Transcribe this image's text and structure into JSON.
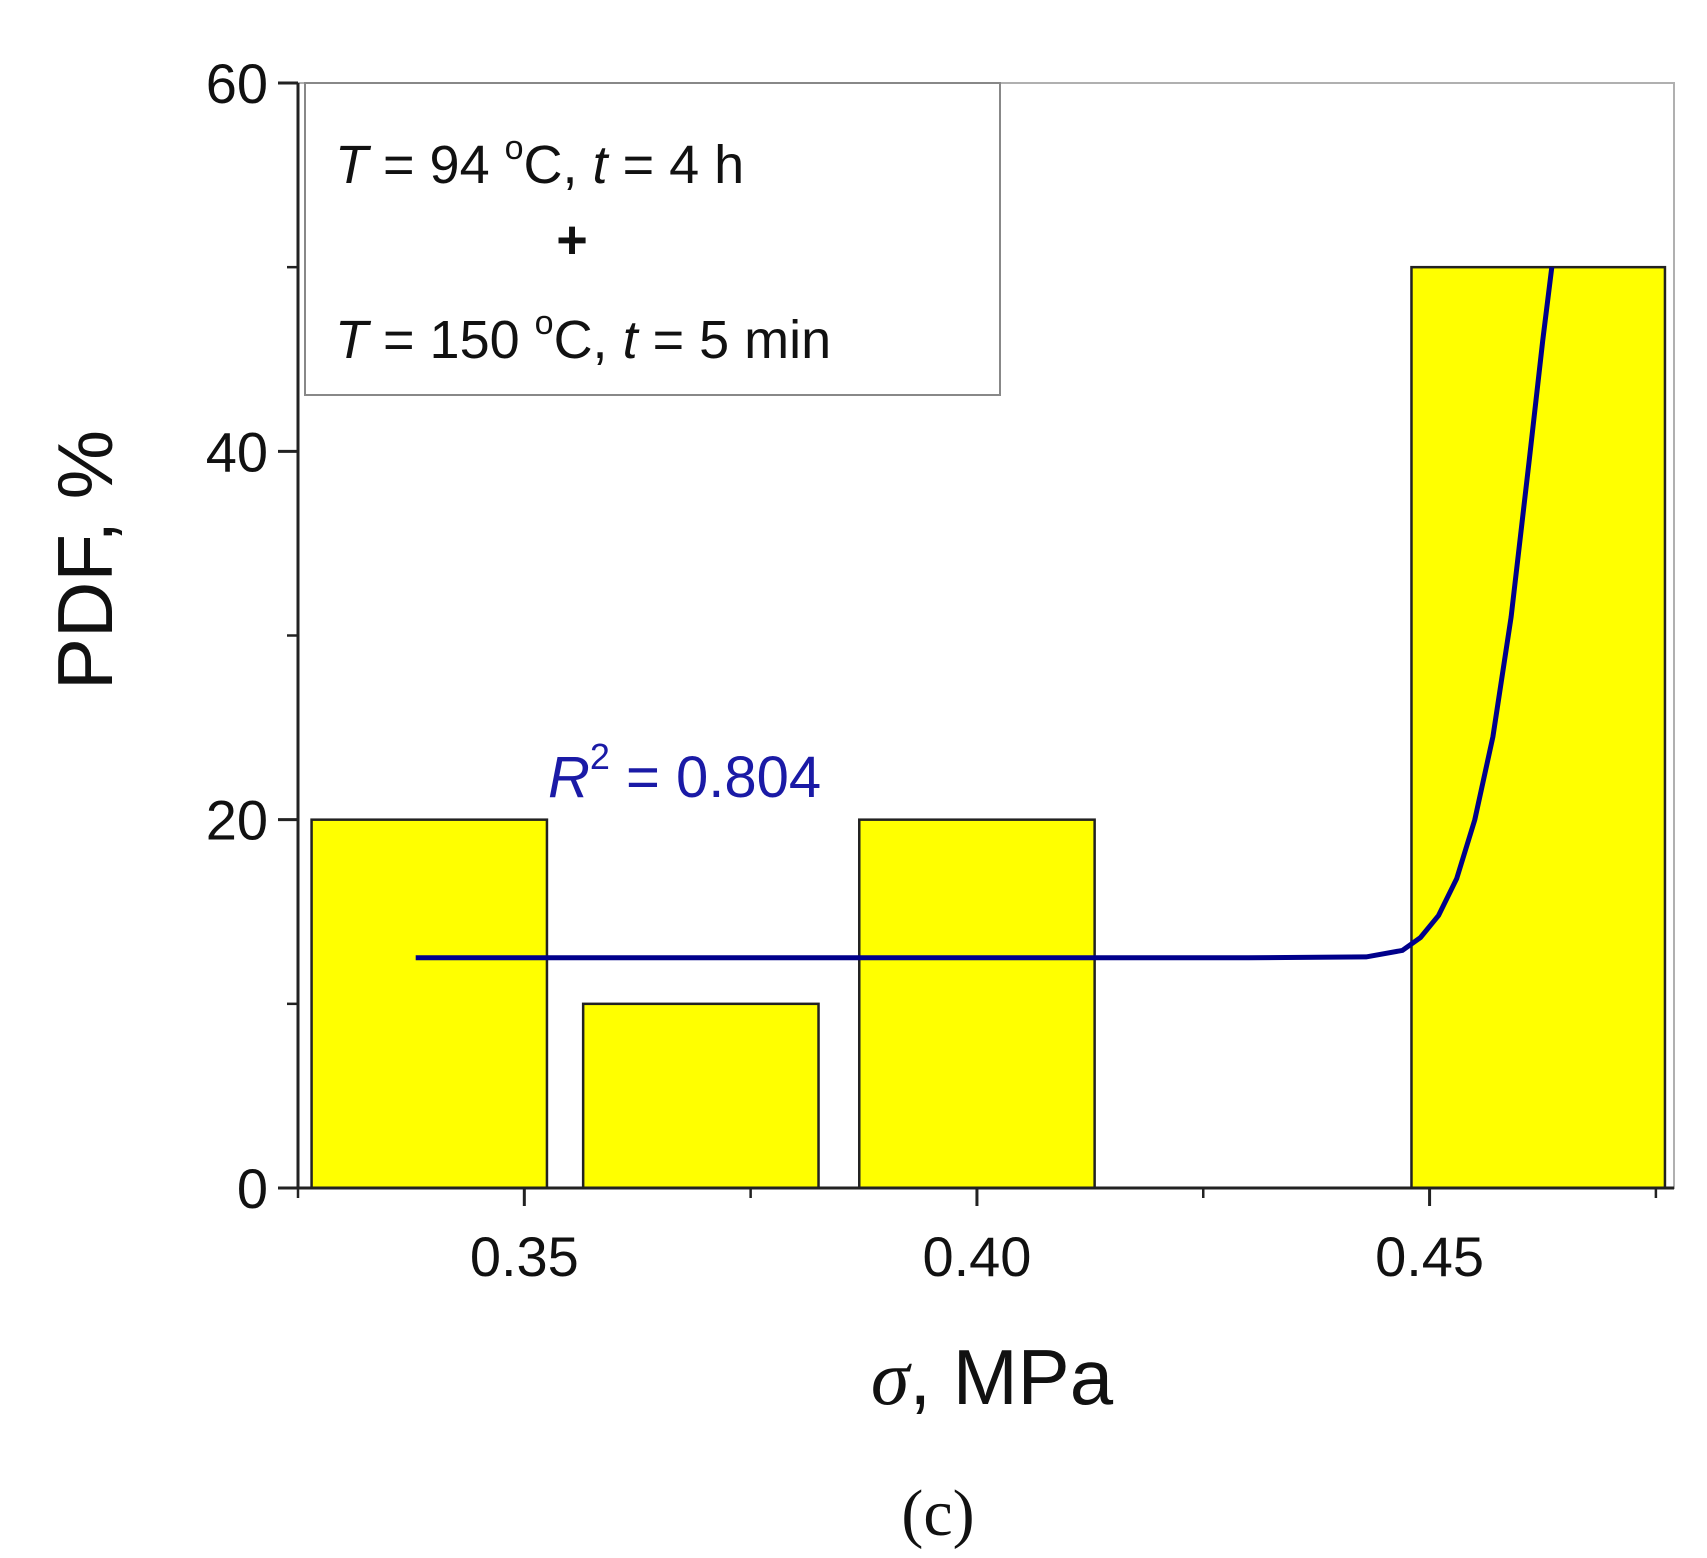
{
  "chart_data": {
    "type": "bar",
    "xlabel_symbol": "σ",
    "xlabel_rest": ", MPa",
    "ylabel": "PDF, %",
    "xlim": [
      0.325,
      0.477
    ],
    "ylim": [
      0,
      60
    ],
    "x_ticks": [
      0.35,
      0.4,
      0.45
    ],
    "x_tick_labels": [
      "0.35",
      "0.40",
      "0.45"
    ],
    "x_minor_ticks": [
      0.325,
      0.375,
      0.425,
      0.475
    ],
    "y_ticks": [
      0,
      20,
      40,
      60
    ],
    "y_tick_labels": [
      "0",
      "20",
      "40",
      "60"
    ],
    "y_minor_ticks": [
      10,
      30,
      50
    ],
    "bars": [
      {
        "x0": 0.3265,
        "x1": 0.3525,
        "value": 20
      },
      {
        "x0": 0.3565,
        "x1": 0.3825,
        "value": 10
      },
      {
        "x0": 0.387,
        "x1": 0.413,
        "value": 20
      },
      {
        "x0": 0.448,
        "x1": 0.476,
        "value": 50
      }
    ],
    "fit_curve": [
      [
        0.338,
        12.5
      ],
      [
        0.36,
        12.5
      ],
      [
        0.4,
        12.5
      ],
      [
        0.43,
        12.5
      ],
      [
        0.443,
        12.55
      ],
      [
        0.447,
        12.9
      ],
      [
        0.449,
        13.6
      ],
      [
        0.451,
        14.8
      ],
      [
        0.453,
        16.8
      ],
      [
        0.455,
        20.0
      ],
      [
        0.457,
        24.5
      ],
      [
        0.459,
        31.0
      ],
      [
        0.461,
        39.5
      ],
      [
        0.4625,
        46.0
      ],
      [
        0.4635,
        50.0
      ]
    ],
    "fit_label_symbol": "R",
    "fit_label_sup": "2",
    "fit_label_rest": " = 0.804",
    "legend": {
      "line1_T": "T",
      "line1_a": " = 94 ",
      "line1_deg": "o",
      "line1_b": "C, ",
      "line1_t": "t",
      "line1_c": " = 4 h",
      "plus": "+",
      "line2_T": "T",
      "line2_a": " = 150 ",
      "line2_deg": "o",
      "line2_b": "C, ",
      "line2_t": "t",
      "line2_c": " = 5 min"
    },
    "panel_label": "(c)",
    "colors": {
      "bar_fill": "#ffff00",
      "bar_stroke": "#222222",
      "fit_line": "#00008b",
      "fit_label": "#1a1aa6",
      "axis": "#222222",
      "frame": "#b0b0b0"
    }
  }
}
